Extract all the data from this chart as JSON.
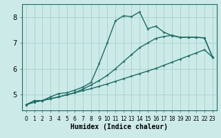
{
  "xlabel": "Humidex (Indice chaleur)",
  "bg_color": "#cceae8",
  "grid_color": "#aad4d0",
  "line_color": "#1e6b65",
  "xlim": [
    -0.5,
    23.5
  ],
  "ylim": [
    4.4,
    8.5
  ],
  "yticks": [
    5,
    6,
    7,
    8
  ],
  "xticks": [
    0,
    1,
    2,
    3,
    4,
    5,
    6,
    7,
    8,
    9,
    10,
    11,
    12,
    13,
    14,
    15,
    16,
    17,
    18,
    19,
    20,
    21,
    22,
    23
  ],
  "line1_x": [
    0,
    1,
    2,
    3,
    4,
    5,
    6,
    7,
    8,
    9,
    10,
    11,
    12,
    13,
    14,
    15,
    16,
    17,
    18,
    19,
    20,
    21,
    22,
    23
  ],
  "line1_y": [
    4.62,
    4.72,
    4.78,
    4.85,
    4.92,
    5.0,
    5.08,
    5.16,
    5.24,
    5.33,
    5.42,
    5.52,
    5.62,
    5.72,
    5.82,
    5.92,
    6.02,
    6.14,
    6.26,
    6.38,
    6.5,
    6.62,
    6.74,
    6.45
  ],
  "line2_x": [
    0,
    1,
    2,
    3,
    4,
    5,
    6,
    7,
    8,
    9,
    10,
    11,
    12,
    13,
    14,
    15,
    16,
    17,
    18,
    19,
    20,
    21,
    22,
    23
  ],
  "line2_y": [
    4.62,
    4.72,
    4.78,
    4.85,
    4.92,
    5.0,
    5.08,
    5.22,
    5.38,
    5.55,
    5.75,
    6.0,
    6.28,
    6.55,
    6.82,
    7.0,
    7.18,
    7.25,
    7.3,
    7.22,
    7.22,
    7.22,
    7.2,
    6.45
  ],
  "line3_x": [
    0,
    1,
    2,
    3,
    4,
    5,
    6,
    7,
    8,
    9,
    10,
    11,
    12,
    13,
    14,
    15,
    16,
    17,
    18,
    19,
    20,
    21,
    22,
    23
  ],
  "line3_y": [
    4.62,
    4.78,
    4.78,
    4.92,
    5.05,
    5.08,
    5.18,
    5.3,
    5.48,
    6.2,
    7.0,
    7.85,
    8.05,
    8.02,
    8.2,
    7.55,
    7.65,
    7.42,
    7.28,
    7.22,
    7.22,
    7.22,
    7.2,
    6.45
  ]
}
